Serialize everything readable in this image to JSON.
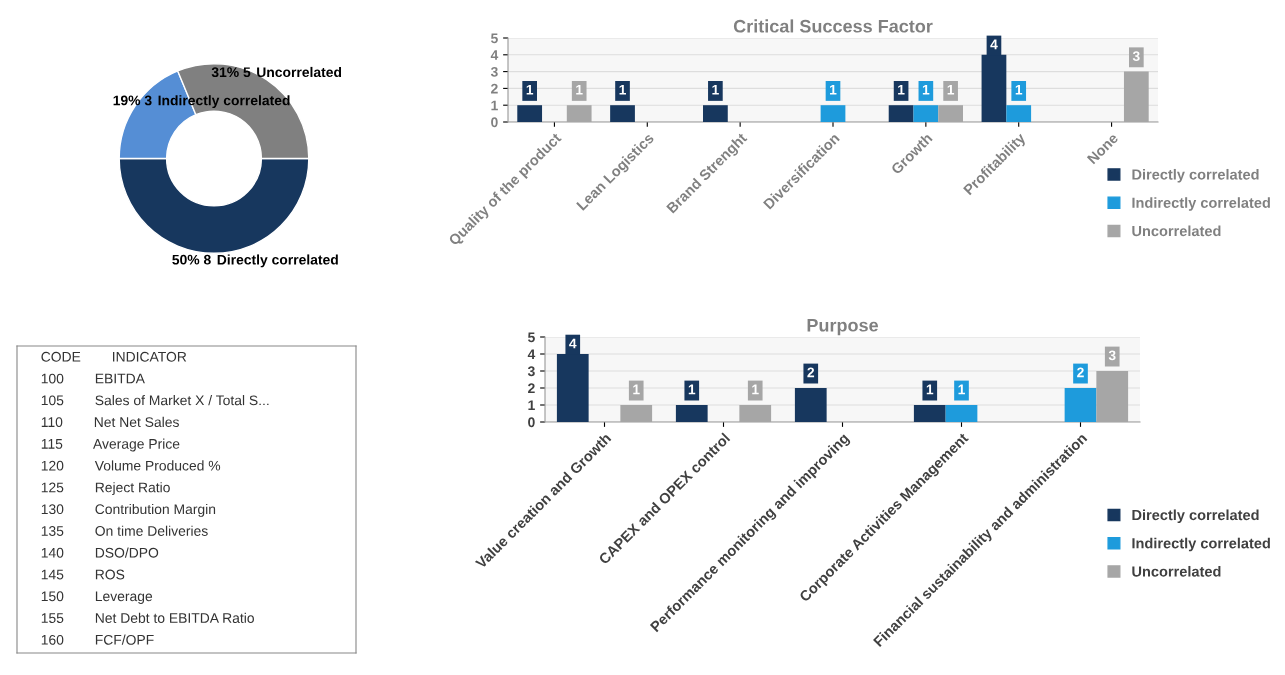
{
  "chart_data": [
    {
      "type": "donut",
      "categories": [
        "Directly correlated",
        "Indirectly correlated",
        "Uncorrelated"
      ],
      "values": [
        8,
        3,
        5
      ],
      "value_labels": [
        "50% 8",
        "19% 3",
        "31% 5"
      ],
      "colors": [
        "#17375e",
        "#558ed5",
        "#808080"
      ]
    },
    {
      "type": "bar",
      "title": "Critical Success Factor",
      "categories": [
        "Quality of the product",
        "Lean Logistics",
        "Brand Strenght",
        "Diversification",
        "Growth",
        "Profitability",
        "None"
      ],
      "series": [
        {
          "name": "Directly correlated",
          "color": "#17375e",
          "values": [
            1,
            1,
            1,
            null,
            1,
            4,
            null
          ]
        },
        {
          "name": "Indirectly correlated",
          "color": "#1e9bdc",
          "values": [
            null,
            null,
            null,
            1,
            1,
            1,
            null
          ]
        },
        {
          "name": "Uncorrelated",
          "color": "#a6a6a6",
          "values": [
            1,
            null,
            null,
            null,
            1,
            null,
            3
          ]
        }
      ],
      "ylim": [
        0,
        5
      ],
      "yticks": [
        0,
        1,
        2,
        3,
        4,
        5
      ],
      "grid": "y",
      "legend": "right",
      "data_labels": true
    },
    {
      "type": "bar",
      "title": "Purpose",
      "categories": [
        "Value creation and Growth",
        "CAPEX and OPEX control",
        "Performance monitoring and improving",
        "Corporate Activities Management",
        "Financial sustainability and administration"
      ],
      "series": [
        {
          "name": "Directly correlated",
          "color": "#17375e",
          "values": [
            4,
            1,
            2,
            1,
            null
          ]
        },
        {
          "name": "Indirectly correlated",
          "color": "#1e9bdc",
          "values": [
            null,
            null,
            null,
            1,
            2
          ]
        },
        {
          "name": "Uncorrelated",
          "color": "#a6a6a6",
          "values": [
            1,
            1,
            null,
            null,
            3
          ]
        }
      ],
      "ylim": [
        0,
        5
      ],
      "yticks": [
        0,
        1,
        2,
        3,
        4,
        5
      ],
      "grid": "y",
      "legend": "right",
      "data_labels": true
    },
    {
      "type": "other",
      "annotations": [
        "CODE INDICATOR",
        "100 EBITDA",
        "105 Sales of Market X / Total S...",
        "110 Net Net Sales",
        "115 Average Price",
        "120 Volume Produced %",
        "125 Reject Ratio",
        "130 Contribution Margin",
        "135 On time Deliveries",
        "140 DSO/DPO",
        "145 ROS",
        "150 Leverage",
        "155 Net Debt to EBITDA Ratio",
        "160 FCF/OPF"
      ]
    }
  ]
}
